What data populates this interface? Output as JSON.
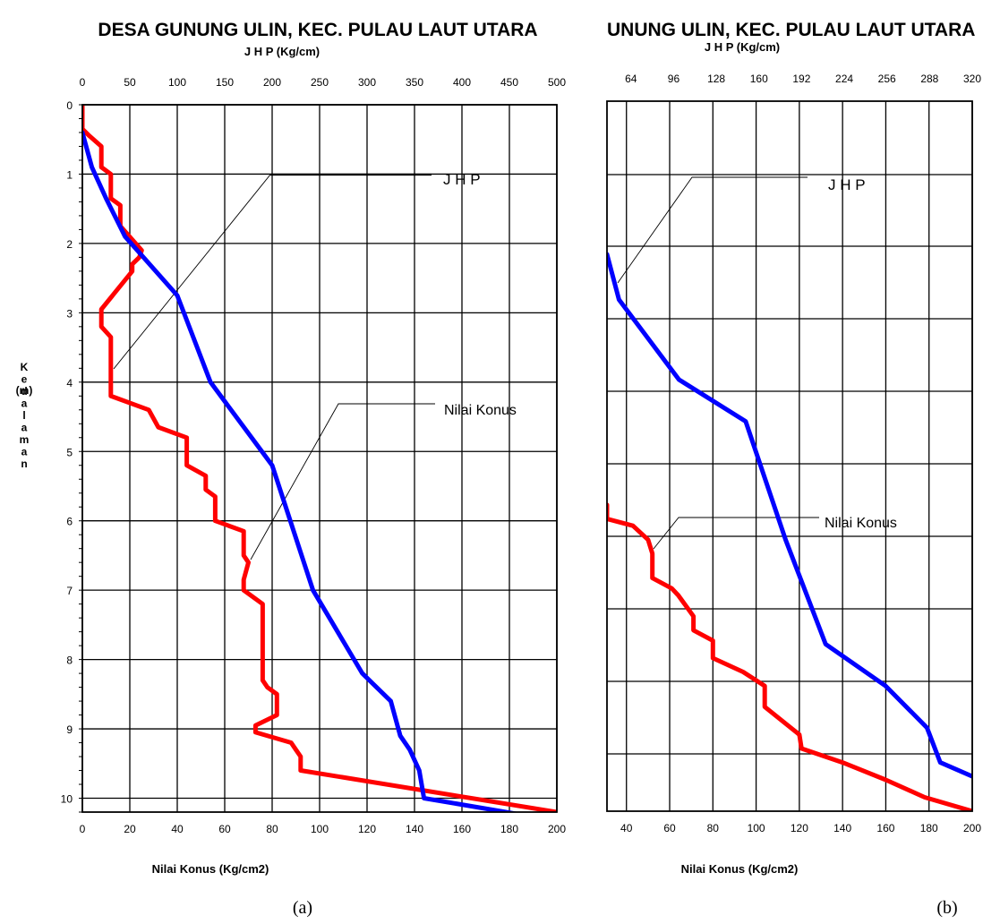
{
  "chart_data": [
    {
      "type": "line",
      "title": "DESA GUNUNG ULIN, KEC. PULAU LAUT UTARA",
      "top_axis_label": "J H P (Kg/cm)",
      "bottom_axis_label": "Nilai Konus (Kg/cm2)",
      "y_axis_label": "Kedalaman",
      "y_axis_unit": "(m)",
      "caption": "(a)",
      "top_ticks": [
        "0",
        "50",
        "100",
        "150",
        "200",
        "250",
        "300",
        "350",
        "400",
        "450",
        "500"
      ],
      "bottom_ticks": [
        "0",
        "20",
        "40",
        "60",
        "80",
        "100",
        "120",
        "140",
        "160",
        "180",
        "200"
      ],
      "y_ticks": [
        "0",
        "1",
        "2",
        "3",
        "4",
        "5",
        "6",
        "7",
        "8",
        "9",
        "10"
      ],
      "xlim_top": [
        0,
        500
      ],
      "xlim_bottom": [
        0,
        200
      ],
      "ylim": [
        0,
        10.2
      ],
      "y_inverted": true,
      "grid": true,
      "annotations": [
        "J H P",
        "Nilai Konus"
      ],
      "series": [
        {
          "name": "Nilai Konus",
          "axis": "bottom",
          "color": "#ff0000",
          "x": [
            0,
            0,
            3,
            8,
            8,
            12,
            12,
            16,
            16,
            25,
            24,
            21,
            21,
            8,
            8,
            12,
            12,
            28,
            32,
            44,
            44,
            52,
            52,
            56,
            56,
            68,
            68,
            70,
            68,
            68,
            76,
            76,
            78,
            82,
            82,
            73,
            73,
            88,
            90,
            92,
            92,
            200
          ],
          "y": [
            0,
            0.35,
            0.45,
            0.6,
            0.9,
            1.0,
            1.35,
            1.45,
            1.75,
            2.1,
            2.2,
            2.3,
            2.4,
            2.95,
            3.2,
            3.35,
            4.2,
            4.4,
            4.65,
            4.8,
            5.2,
            5.35,
            5.55,
            5.65,
            6.0,
            6.15,
            6.5,
            6.6,
            6.85,
            7.0,
            7.2,
            8.3,
            8.4,
            8.5,
            8.8,
            8.95,
            9.05,
            9.2,
            9.3,
            9.4,
            9.6,
            10.2
          ]
        },
        {
          "name": "J H P",
          "axis": "top",
          "color": "#0000ff",
          "x": [
            0,
            10,
            25,
            45,
            100,
            135,
            200,
            243,
            295,
            325,
            335,
            345,
            355,
            360,
            468
          ],
          "y": [
            0.4,
            0.9,
            1.35,
            1.9,
            2.75,
            4.0,
            5.2,
            7.0,
            8.2,
            8.6,
            9.1,
            9.3,
            9.6,
            10.0,
            10.25
          ]
        }
      ]
    },
    {
      "type": "line",
      "title": "UNUNG ULIN, KEC. PULAU LAUT UTARA",
      "top_axis_label": "J H P (Kg/cm)",
      "bottom_axis_label": "Nilai Konus (Kg/cm2)",
      "caption": "(b)",
      "top_ticks": [
        "64",
        "96",
        "128",
        "160",
        "192",
        "224",
        "256",
        "288",
        "320"
      ],
      "bottom_ticks": [
        "40",
        "60",
        "80",
        "100",
        "120",
        "140",
        "160",
        "180",
        "200"
      ],
      "xlim_top": [
        46,
        320
      ],
      "xlim_bottom": [
        31,
        200
      ],
      "ylim": [
        0,
        10.2
      ],
      "y_inverted": true,
      "grid": true,
      "annotations": [
        "J H P",
        "Nilai Konus"
      ],
      "series": [
        {
          "name": "Nilai Konus",
          "axis": "bottom",
          "color": "#ff0000",
          "x": [
            31,
            31,
            43,
            50,
            52,
            52,
            61,
            64,
            71,
            71,
            80,
            80,
            94,
            104,
            104,
            120,
            121,
            140,
            160,
            178,
            200
          ],
          "y": [
            5.8,
            6.0,
            6.1,
            6.3,
            6.5,
            6.85,
            7.0,
            7.1,
            7.4,
            7.6,
            7.75,
            8.0,
            8.2,
            8.4,
            8.7,
            9.1,
            9.3,
            9.5,
            9.75,
            10.0,
            10.2
          ]
        },
        {
          "name": "J H P",
          "axis": "top",
          "color": "#0000ff",
          "x": [
            46,
            55,
            100,
            150,
            180,
            210,
            255,
            286,
            296,
            320
          ],
          "y": [
            2.2,
            2.85,
            4.0,
            4.6,
            6.3,
            7.8,
            8.4,
            9.0,
            9.5,
            9.7
          ]
        }
      ]
    }
  ]
}
